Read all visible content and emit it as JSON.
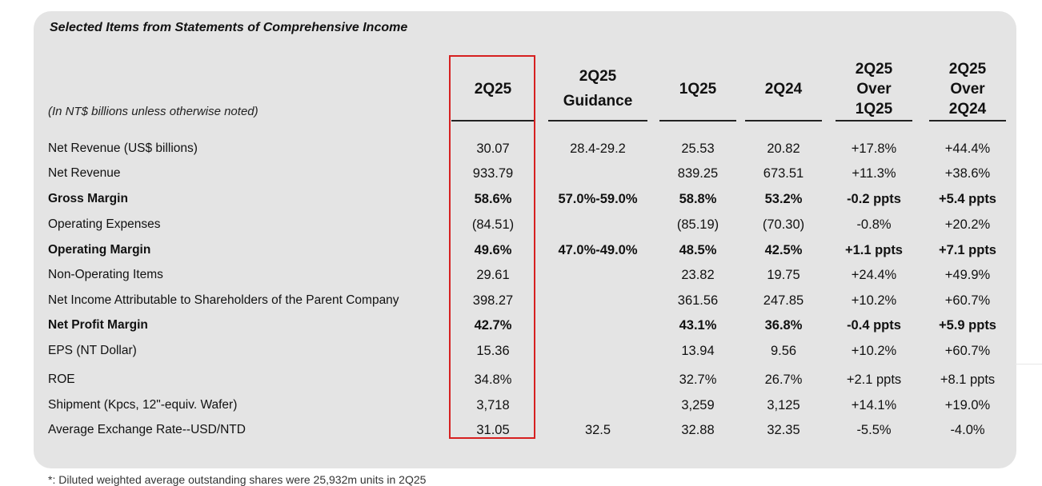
{
  "title": "Selected Items from Statements of Comprehensive Income",
  "unit_note": "(In NT$ billions unless otherwise noted)",
  "columns": [
    {
      "lines": [
        "2Q25"
      ]
    },
    {
      "lines": [
        "2Q25",
        "Guidance"
      ]
    },
    {
      "lines": [
        "1Q25"
      ]
    },
    {
      "lines": [
        "2Q24"
      ]
    },
    {
      "lines": [
        "2Q25",
        "Over",
        "1Q25"
      ]
    },
    {
      "lines": [
        "2Q25",
        "Over",
        "2Q24"
      ]
    }
  ],
  "rows": [
    {
      "label": "Net Revenue (US$ billions)",
      "bold": false,
      "values": [
        "30.07",
        "28.4-29.2",
        "25.53",
        "20.82",
        "+17.8%",
        "+44.4%"
      ]
    },
    {
      "label": "Net Revenue",
      "bold": false,
      "values": [
        "933.79",
        "",
        "839.25",
        "673.51",
        "+11.3%",
        "+38.6%"
      ]
    },
    {
      "label": "Gross Margin",
      "bold": true,
      "values": [
        "58.6%",
        "57.0%-59.0%",
        "58.8%",
        "53.2%",
        "-0.2 ppts",
        "+5.4 ppts"
      ]
    },
    {
      "label": "Operating Expenses",
      "bold": false,
      "values": [
        "(84.51)",
        "",
        "(85.19)",
        "(70.30)",
        "-0.8%",
        "+20.2%"
      ]
    },
    {
      "label": "Operating Margin",
      "bold": true,
      "values": [
        "49.6%",
        "47.0%-49.0%",
        "48.5%",
        "42.5%",
        "+1.1 ppts",
        "+7.1 ppts"
      ]
    },
    {
      "label": "Non-Operating Items",
      "bold": false,
      "values": [
        "29.61",
        "",
        "23.82",
        "19.75",
        "+24.4%",
        "+49.9%"
      ]
    },
    {
      "label": "Net Income Attributable to Shareholders of the Parent Company",
      "bold": false,
      "values": [
        "398.27",
        "",
        "361.56",
        "247.85",
        "+10.2%",
        "+60.7%"
      ]
    },
    {
      "label": "Net Profit Margin",
      "bold": true,
      "values": [
        "42.7%",
        "",
        "43.1%",
        "36.8%",
        "-0.4 ppts",
        "+5.9 ppts"
      ]
    },
    {
      "label": "EPS (NT Dollar)",
      "bold": false,
      "values": [
        "15.36",
        "",
        "13.94",
        "9.56",
        "+10.2%",
        "+60.7%"
      ]
    },
    {
      "label": "ROE",
      "bold": false,
      "values": [
        "34.8%",
        "",
        "32.7%",
        "26.7%",
        "+2.1 ppts",
        "+8.1 ppts"
      ]
    },
    {
      "label": "Shipment (Kpcs, 12\"-equiv. Wafer)",
      "bold": false,
      "values": [
        "3,718",
        "",
        "3,259",
        "3,125",
        "+14.1%",
        "+19.0%"
      ]
    },
    {
      "label": "Average Exchange Rate--USD/NTD",
      "bold": false,
      "values": [
        "31.05",
        "32.5",
        "32.88",
        "32.35",
        "-5.5%",
        "-4.0%"
      ]
    }
  ],
  "footnote": "*: Diluted weighted average outstanding shares were 25,932m units in 2Q25"
}
